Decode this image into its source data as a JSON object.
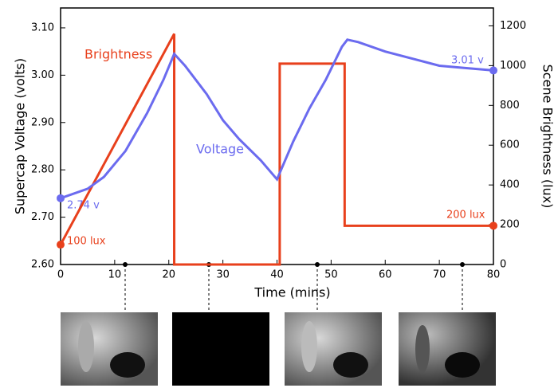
{
  "chart_data": {
    "type": "line",
    "xlabel": "Time (mins)",
    "ylabel": "Supercap Voltage (volts)",
    "y2label": "Scene Brightness (lux)",
    "xlim": [
      0,
      80
    ],
    "xticks": [
      0,
      10,
      20,
      30,
      40,
      50,
      60,
      70,
      80
    ],
    "ylim": [
      2.6,
      3.142
    ],
    "yticks": [
      {
        "value": 2.6,
        "label": "2.60"
      },
      {
        "value": 2.7,
        "label": "2.70"
      },
      {
        "value": 2.8,
        "label": "2.80"
      },
      {
        "value": 2.9,
        "label": "2.90"
      },
      {
        "value": 3.0,
        "label": "3.00"
      },
      {
        "value": 3.1,
        "label": "3.10"
      }
    ],
    "y2lim": [
      0,
      1290
    ],
    "y2ticks": [
      0,
      200,
      400,
      600,
      800,
      1000,
      1200
    ],
    "series": [
      {
        "name": "Brightness",
        "color": "#e8401c",
        "axis": "y2",
        "x": [
          0,
          21,
          21,
          40.5,
          40.5,
          52.5,
          52.5,
          80
        ],
        "values": [
          100,
          1160,
          0,
          0,
          1010,
          1010,
          195,
          195
        ]
      },
      {
        "name": "Voltage",
        "color": "#6b6bef",
        "x": [
          0,
          5,
          8,
          12,
          16,
          19,
          21,
          23,
          27,
          30,
          33,
          37,
          40,
          43,
          46,
          49,
          52,
          53,
          55,
          60,
          65,
          70,
          75,
          80
        ],
        "values": [
          2.74,
          2.76,
          2.785,
          2.84,
          2.92,
          2.99,
          3.045,
          3.02,
          2.96,
          2.905,
          2.865,
          2.82,
          2.78,
          2.86,
          2.93,
          2.99,
          3.06,
          3.075,
          3.07,
          3.05,
          3.035,
          3.02,
          3.015,
          3.01
        ]
      }
    ],
    "annotations": [
      "2.74 v",
      "100 lux",
      "3.01 v",
      "200 lux"
    ]
  }
}
